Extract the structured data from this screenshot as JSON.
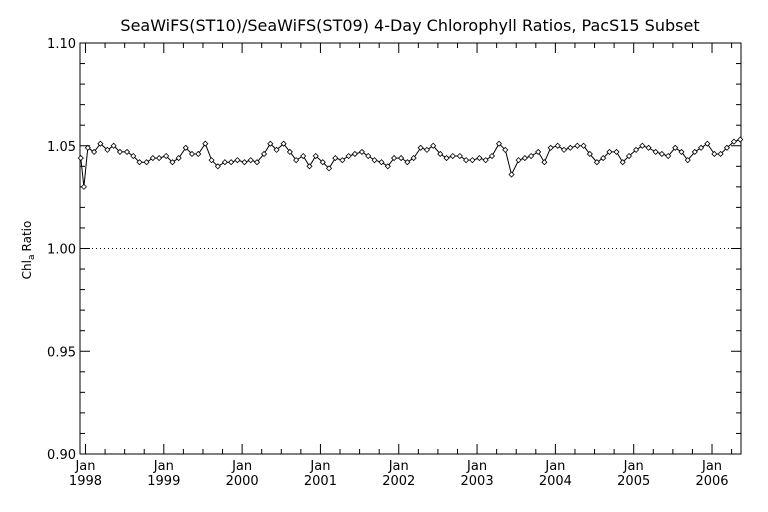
{
  "chart_data": {
    "type": "line",
    "title": "SeaWiFS(ST10)/SeaWiFS(ST09) 4-Day Chlorophyll Ratios, PacS15 Subset",
    "ylabel": {
      "main": "Chl",
      "sub": "a",
      "rest": "Ratio"
    },
    "ylim": [
      0.9,
      1.1
    ],
    "xlim": [
      1997.93,
      2006.37
    ],
    "y_ticks": [
      {
        "value": 0.9,
        "label": "0.90"
      },
      {
        "value": 0.95,
        "label": "0.95"
      },
      {
        "value": 1.0,
        "label": "1.00"
      },
      {
        "value": 1.05,
        "label": "1.05"
      },
      {
        "value": 1.1,
        "label": "1.10"
      }
    ],
    "x_ticks": [
      {
        "value": 1998.0,
        "month": "Jan",
        "year": "1998"
      },
      {
        "value": 1999.0,
        "month": "Jan",
        "year": "1999"
      },
      {
        "value": 2000.0,
        "month": "Jan",
        "year": "2000"
      },
      {
        "value": 2001.0,
        "month": "Jan",
        "year": "2001"
      },
      {
        "value": 2002.0,
        "month": "Jan",
        "year": "2002"
      },
      {
        "value": 2003.0,
        "month": "Jan",
        "year": "2003"
      },
      {
        "value": 2004.0,
        "month": "Jan",
        "year": "2004"
      },
      {
        "value": 2005.0,
        "month": "Jan",
        "year": "2005"
      },
      {
        "value": 2006.0,
        "month": "Jan",
        "year": "2006"
      }
    ],
    "reference_line": 1.0,
    "x": [
      1997.94,
      1997.98,
      1998.03,
      1998.11,
      1998.19,
      1998.28,
      1998.36,
      1998.44,
      1998.53,
      1998.61,
      1998.69,
      1998.78,
      1998.86,
      1998.94,
      1999.03,
      1999.11,
      1999.19,
      1999.28,
      1999.36,
      1999.44,
      1999.53,
      1999.61,
      1999.69,
      1999.78,
      1999.86,
      1999.94,
      2000.03,
      2000.11,
      2000.19,
      2000.28,
      2000.36,
      2000.44,
      2000.53,
      2000.61,
      2000.69,
      2000.78,
      2000.86,
      2000.94,
      2001.03,
      2001.11,
      2001.19,
      2001.28,
      2001.36,
      2001.44,
      2001.53,
      2001.61,
      2001.69,
      2001.78,
      2001.86,
      2001.94,
      2002.03,
      2002.11,
      2002.19,
      2002.28,
      2002.36,
      2002.44,
      2002.53,
      2002.61,
      2002.69,
      2002.78,
      2002.86,
      2002.94,
      2003.03,
      2003.11,
      2003.19,
      2003.28,
      2003.36,
      2003.44,
      2003.53,
      2003.61,
      2003.69,
      2003.78,
      2003.86,
      2003.94,
      2004.03,
      2004.11,
      2004.19,
      2004.28,
      2004.36,
      2004.44,
      2004.53,
      2004.61,
      2004.69,
      2004.78,
      2004.86,
      2004.94,
      2005.03,
      2005.11,
      2005.19,
      2005.28,
      2005.36,
      2005.44,
      2005.53,
      2005.61,
      2005.69,
      2005.78,
      2005.86,
      2005.94,
      2006.03,
      2006.11,
      2006.19,
      2006.28,
      2006.36
    ],
    "y": [
      1.044,
      1.03,
      1.049,
      1.047,
      1.051,
      1.048,
      1.05,
      1.047,
      1.047,
      1.045,
      1.042,
      1.042,
      1.044,
      1.044,
      1.045,
      1.042,
      1.044,
      1.049,
      1.046,
      1.046,
      1.051,
      1.043,
      1.04,
      1.042,
      1.042,
      1.043,
      1.042,
      1.043,
      1.042,
      1.046,
      1.051,
      1.048,
      1.051,
      1.047,
      1.043,
      1.045,
      1.04,
      1.045,
      1.042,
      1.039,
      1.044,
      1.043,
      1.045,
      1.046,
      1.047,
      1.045,
      1.043,
      1.042,
      1.04,
      1.044,
      1.044,
      1.042,
      1.044,
      1.049,
      1.048,
      1.05,
      1.046,
      1.044,
      1.045,
      1.045,
      1.043,
      1.043,
      1.044,
      1.043,
      1.045,
      1.051,
      1.048,
      1.036,
      1.043,
      1.044,
      1.045,
      1.047,
      1.042,
      1.049,
      1.05,
      1.048,
      1.049,
      1.05,
      1.05,
      1.046,
      1.042,
      1.044,
      1.047,
      1.047,
      1.042,
      1.045,
      1.048,
      1.05,
      1.049,
      1.047,
      1.046,
      1.045,
      1.049,
      1.047,
      1.043,
      1.047,
      1.049,
      1.051,
      1.046,
      1.046,
      1.049,
      1.052,
      1.053
    ],
    "grid": false,
    "line_color": "#000000",
    "marker": "diamond",
    "reference_line_style": "dotted"
  }
}
